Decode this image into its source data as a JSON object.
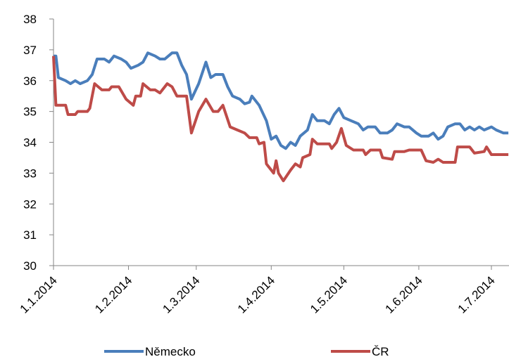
{
  "chart_data": {
    "type": "line",
    "xlim": [
      0,
      188
    ],
    "xticks": [
      {
        "value": 0,
        "label": "1.1.2014"
      },
      {
        "value": 31,
        "label": "1.2.2014"
      },
      {
        "value": 59,
        "label": "1.3.2014"
      },
      {
        "value": 90,
        "label": "1.4.2014"
      },
      {
        "value": 120,
        "label": "1.5.2014"
      },
      {
        "value": 151,
        "label": "1.6.2014"
      },
      {
        "value": 181,
        "label": "1.7.2014"
      }
    ],
    "ylim": [
      30,
      38
    ],
    "yticks": [
      30,
      31,
      32,
      33,
      34,
      35,
      36,
      37,
      38
    ],
    "grid": false,
    "legend": "bottom",
    "series": [
      {
        "name": "Německo",
        "color": "#4a7ebb",
        "x": [
          0,
          1,
          2,
          5,
          7,
          9,
          11,
          14,
          16,
          18,
          21,
          23,
          25,
          28,
          30,
          32,
          35,
          37,
          39,
          42,
          44,
          46,
          49,
          51,
          53,
          55,
          57,
          60,
          63,
          65,
          67,
          70,
          72,
          74,
          77,
          79,
          81,
          82,
          85,
          88,
          90,
          92,
          94,
          96,
          98,
          100,
          102,
          105,
          107,
          109,
          112,
          114,
          116,
          118,
          120,
          123,
          126,
          128,
          130,
          133,
          135,
          138,
          140,
          142,
          145,
          147,
          150,
          152,
          155,
          157,
          159,
          161,
          163,
          166,
          168,
          170,
          172,
          174,
          176,
          178,
          181,
          183,
          186,
          188
        ],
        "values": [
          36.8,
          36.8,
          36.1,
          36.0,
          35.9,
          36.0,
          35.9,
          36.0,
          36.2,
          36.7,
          36.7,
          36.6,
          36.8,
          36.7,
          36.6,
          36.4,
          36.5,
          36.6,
          36.9,
          36.8,
          36.7,
          36.7,
          36.9,
          36.9,
          36.5,
          36.2,
          35.4,
          35.9,
          36.6,
          36.1,
          36.2,
          36.2,
          35.8,
          35.5,
          35.4,
          35.25,
          35.3,
          35.5,
          35.2,
          34.7,
          34.1,
          34.2,
          33.9,
          33.8,
          34.0,
          33.9,
          34.2,
          34.4,
          34.9,
          34.7,
          34.7,
          34.6,
          34.9,
          35.1,
          34.8,
          34.7,
          34.6,
          34.4,
          34.5,
          34.5,
          34.3,
          34.3,
          34.4,
          34.6,
          34.5,
          34.5,
          34.3,
          34.2,
          34.2,
          34.3,
          34.1,
          34.2,
          34.5,
          34.6,
          34.6,
          34.4,
          34.5,
          34.4,
          34.5,
          34.4,
          34.5,
          34.4,
          34.3,
          34.3
        ]
      },
      {
        "name": "ČR",
        "color": "#be4b48",
        "x": [
          0,
          1,
          5,
          6,
          9,
          10,
          14,
          15,
          17,
          20,
          23,
          24,
          27,
          30,
          33,
          34,
          36,
          37,
          40,
          42,
          44,
          47,
          49,
          51,
          55,
          57,
          60,
          63,
          66,
          68,
          70,
          73,
          76,
          79,
          81,
          84,
          85,
          87,
          88,
          91,
          92,
          93,
          95,
          98,
          100,
          102,
          103,
          106,
          107,
          109,
          114,
          115,
          117,
          119,
          121,
          124,
          128,
          129,
          131,
          135,
          136,
          140,
          141,
          145,
          147,
          152,
          154,
          157,
          159,
          161,
          166,
          167,
          172,
          174,
          178,
          179,
          181,
          188
        ],
        "values": [
          36.8,
          35.2,
          35.2,
          34.9,
          34.9,
          35.0,
          35.0,
          35.1,
          35.9,
          35.7,
          35.7,
          35.8,
          35.8,
          35.4,
          35.2,
          35.5,
          35.5,
          35.9,
          35.7,
          35.7,
          35.6,
          35.9,
          35.8,
          35.5,
          35.5,
          34.3,
          35.0,
          35.4,
          35.0,
          35.0,
          35.2,
          34.5,
          34.4,
          34.3,
          34.15,
          34.15,
          33.95,
          34.0,
          33.3,
          33.0,
          33.4,
          33.0,
          32.75,
          33.1,
          33.3,
          33.2,
          33.5,
          33.6,
          34.1,
          33.95,
          33.95,
          33.8,
          34.0,
          34.45,
          33.9,
          33.75,
          33.75,
          33.6,
          33.75,
          33.75,
          33.5,
          33.45,
          33.7,
          33.7,
          33.75,
          33.75,
          33.4,
          33.35,
          33.45,
          33.35,
          33.35,
          33.85,
          33.85,
          33.65,
          33.7,
          33.85,
          33.6,
          33.6
        ]
      }
    ]
  }
}
